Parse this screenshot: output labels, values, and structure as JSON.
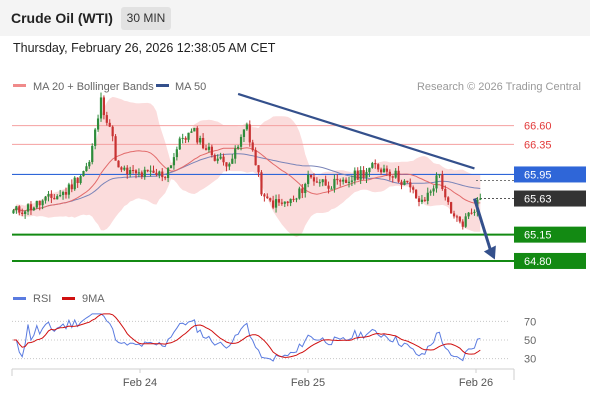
{
  "header": {
    "title": "Crude Oil (WTI)",
    "timeframe": "30 MIN"
  },
  "timestamp": "Thursday, February 26, 2026 12:38:05 AM CET",
  "legend": {
    "items": [
      {
        "label": "MA 20 + Bollinger Bands",
        "color": "#f08a8a"
      },
      {
        "label": "MA 50",
        "color": "#34508c"
      }
    ],
    "credit": "Research © 2026 Trading Central"
  },
  "colors": {
    "up": "#2e8b3a",
    "down": "#c83232",
    "band": "#fbdcdc",
    "ma20": "#e26a6a",
    "ma50": "#7a84b8",
    "trend": "#34508c",
    "blue_level": "#2f66d8",
    "green_level": "#138a13",
    "red_level": "#f4a0a0",
    "current": "#333333",
    "rsi": "#5a7be0",
    "rsi_ma": "#d01010"
  },
  "chart_data": [
    {
      "type": "candlestick",
      "title": "Crude Oil (WTI)",
      "ylim": [
        64.6,
        66.94
      ],
      "x_ticks": [
        "Feb 24",
        "Feb 25",
        "Feb 26"
      ],
      "price_levels": [
        {
          "value": 66.6,
          "label": "66.60",
          "kind": "resistance"
        },
        {
          "value": 66.35,
          "label": "66.35",
          "kind": "resistance"
        },
        {
          "value": 65.95,
          "label": "65.95",
          "kind": "pivot"
        },
        {
          "value": 65.63,
          "label": "65.63",
          "kind": "current"
        },
        {
          "value": 65.15,
          "label": "65.15",
          "kind": "support"
        },
        {
          "value": 64.8,
          "label": "64.80",
          "kind": "target"
        }
      ],
      "trend_line": {
        "from": {
          "bar": 77,
          "price": 67.02
        },
        "to": {
          "bar": 158,
          "price": 66.03
        }
      },
      "projection_arrow": {
        "from": {
          "bar": 158,
          "price": 65.63
        },
        "to": {
          "bar": 165,
          "price": 64.82
        }
      }
    },
    {
      "type": "line",
      "title": "RSI",
      "series": [
        {
          "name": "RSI"
        },
        {
          "name": "9MA"
        }
      ],
      "ylim": [
        20,
        80
      ],
      "y_ticks": [
        30,
        50,
        70
      ]
    }
  ]
}
